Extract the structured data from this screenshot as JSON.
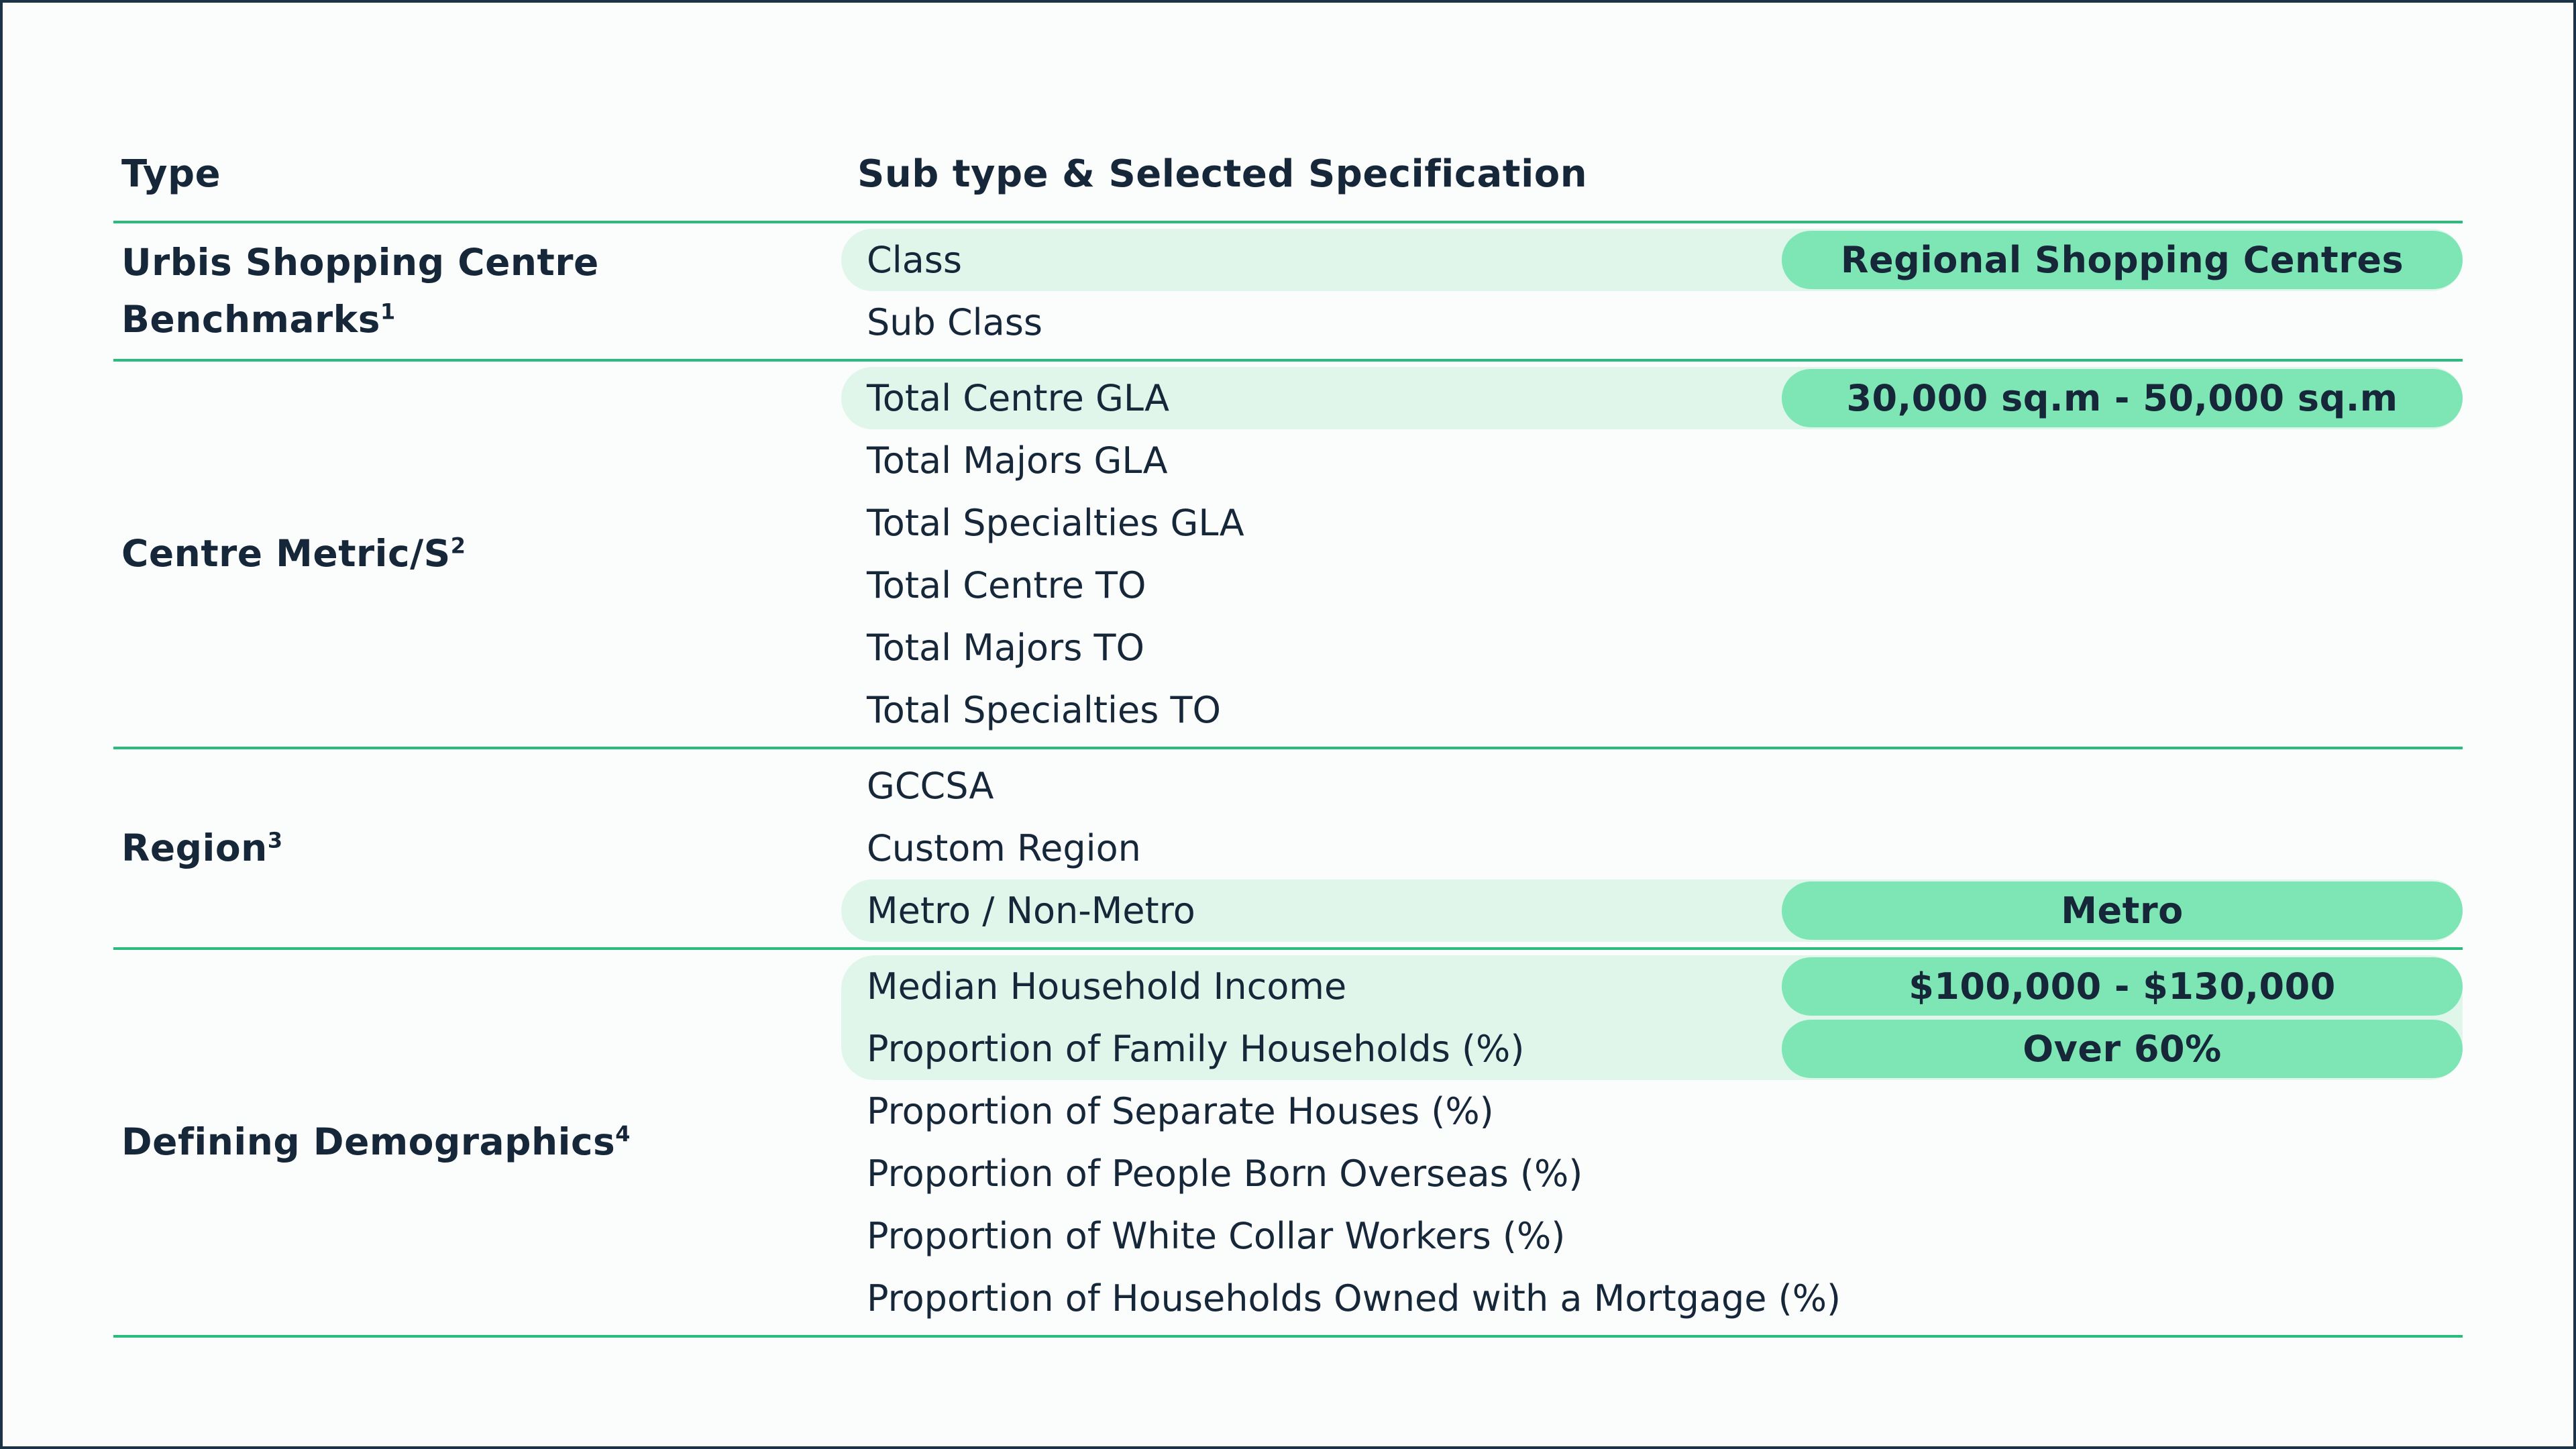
{
  "table": {
    "headers": [
      "Type",
      "Sub type & Selected Specification"
    ],
    "sections": [
      {
        "type_label": "Urbis Shopping Centre Benchmarks",
        "sup": "1",
        "rows": [
          {
            "label": "Class",
            "highlighted": true,
            "value": "Regional Shopping Centres"
          },
          {
            "label": "Sub Class",
            "highlighted": false
          }
        ]
      },
      {
        "type_label": "Centre Metric/S",
        "sup": "2",
        "rows": [
          {
            "label": "Total Centre GLA",
            "highlighted": true,
            "value": "30,000 sq.m - 50,000 sq.m"
          },
          {
            "label": "Total Majors GLA",
            "highlighted": false
          },
          {
            "label": "Total Specialties GLA",
            "highlighted": false
          },
          {
            "label": "Total Centre TO",
            "highlighted": false
          },
          {
            "label": "Total Majors TO",
            "highlighted": false
          },
          {
            "label": "Total Specialties TO",
            "highlighted": false
          }
        ]
      },
      {
        "type_label": "Region",
        "sup": "3",
        "rows": [
          {
            "label": "GCCSA",
            "highlighted": false
          },
          {
            "label": "Custom Region",
            "highlighted": false
          },
          {
            "label": "Metro / Non-Metro",
            "highlighted": true,
            "value": "Metro"
          }
        ]
      },
      {
        "type_label": "Defining Demographics",
        "sup": "4",
        "rows": [
          {
            "label": "Median Household Income",
            "highlighted": true,
            "value": "$100,000 - $130,000"
          },
          {
            "label": "Proportion of Family Households (%)",
            "highlighted": true,
            "value": "Over 60%"
          },
          {
            "label": "Proportion of Separate Houses (%)",
            "highlighted": false
          },
          {
            "label": "Proportion of People Born Overseas (%)",
            "highlighted": false
          },
          {
            "label": "Proportion of White Collar Workers (%)",
            "highlighted": false
          },
          {
            "label": "Proportion of Households Owned with a Mortgage (%)",
            "highlighted": false
          }
        ]
      }
    ]
  },
  "colors": {
    "page_background": "#fbfdfd",
    "page_border": "#1e3247",
    "text": "#17273a",
    "rule_green": "#29bc7e",
    "highlight_row_background": "#e1f6ea",
    "value_pill_background": "#7ee6b4"
  }
}
